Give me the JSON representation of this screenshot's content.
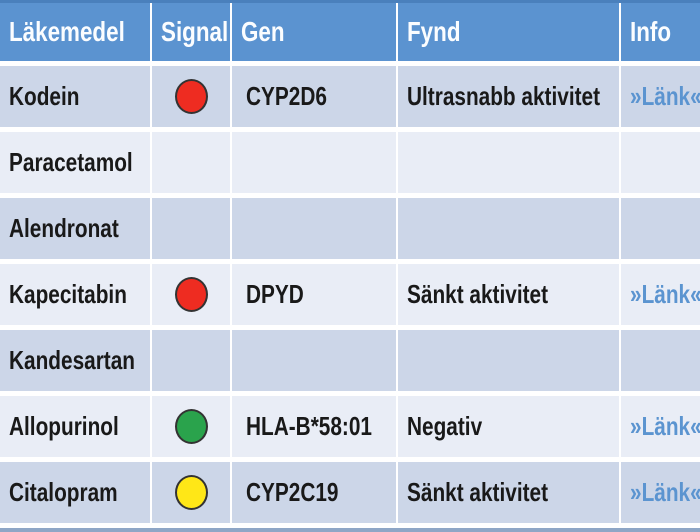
{
  "table": {
    "columns": [
      {
        "key": "drug",
        "label": "Läkemedel"
      },
      {
        "key": "signal",
        "label": "Signal"
      },
      {
        "key": "gen",
        "label": "Gen"
      },
      {
        "key": "fynd",
        "label": "Fynd"
      },
      {
        "key": "info",
        "label": "Info"
      }
    ],
    "rows": [
      {
        "drug": "Kodein",
        "signal": "red",
        "signal_color": "#ee2c21",
        "gen": "CYP2D6",
        "fynd": "Ultrasnabb aktivitet",
        "link": "»Länk«"
      },
      {
        "drug": "Paracetamol",
        "signal": null,
        "signal_color": null,
        "gen": "",
        "fynd": "",
        "link": ""
      },
      {
        "drug": "Alendronat",
        "signal": null,
        "signal_color": null,
        "gen": "",
        "fynd": "",
        "link": ""
      },
      {
        "drug": "Kapecitabin",
        "signal": "red",
        "signal_color": "#ee2c21",
        "gen": "DPYD",
        "fynd": "Sänkt aktivitet",
        "link": "»Länk«"
      },
      {
        "drug": "Kandesartan",
        "signal": null,
        "signal_color": null,
        "gen": "",
        "fynd": "",
        "link": ""
      },
      {
        "drug": "Allopurinol",
        "signal": "green",
        "signal_color": "#2aa34c",
        "gen": "HLA-B*58:01",
        "fynd": "Negativ",
        "link": "»Länk«"
      },
      {
        "drug": "Citalopram",
        "signal": "yellow",
        "signal_color": "#ffe717",
        "gen": "CYP2C19",
        "fynd": "Sänkt aktivitet",
        "link": "»Länk«"
      }
    ]
  },
  "colors": {
    "header_bg": "#5b93d0",
    "header_text": "#fbfdff",
    "row_dark": "#ccd6e8",
    "row_light": "#e9edf6",
    "link": "#5b94d0",
    "signal_red": "#ee2c21",
    "signal_green": "#2aa34c",
    "signal_yellow": "#ffe717",
    "top_edge": "#4a80bc",
    "bottom_edge": "#8ea6c6"
  }
}
